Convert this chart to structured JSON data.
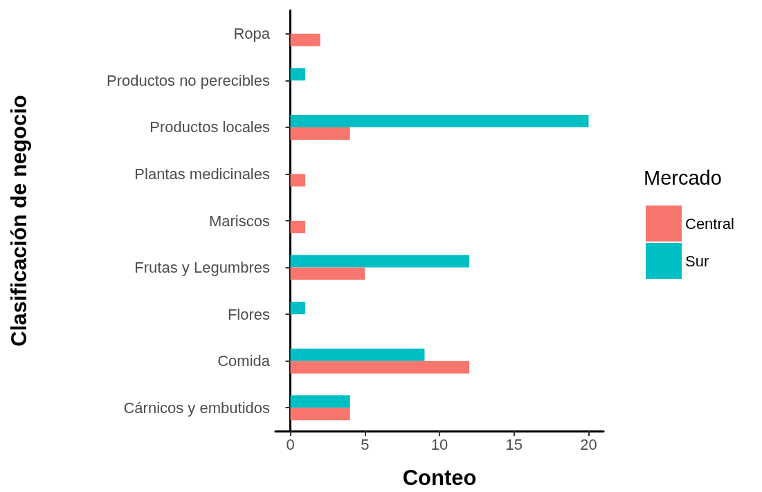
{
  "chart_data": {
    "type": "bar",
    "orientation": "horizontal",
    "xlabel": "Conteo",
    "ylabel": "Clasificación de negocio",
    "legend_title": "Mercado",
    "legend": "right",
    "grid": false,
    "categories": [
      "Ropa",
      "Productos no perecibles",
      "Productos locales",
      "Plantas medicinales",
      "Mariscos",
      "Frutas y Legumbres",
      "Flores",
      "Comida",
      "Cárnicos y embutidos"
    ],
    "series": [
      {
        "name": "Central",
        "color": "#f8766d",
        "values": [
          2,
          0,
          4,
          1,
          1,
          5,
          0,
          12,
          4
        ]
      },
      {
        "name": "Sur",
        "color": "#00bfc4",
        "values": [
          0,
          1,
          20,
          0,
          0,
          12,
          1,
          9,
          4
        ]
      }
    ],
    "xlim": [
      -1,
      21
    ],
    "xticks": [
      0,
      5,
      10,
      15,
      20
    ]
  }
}
